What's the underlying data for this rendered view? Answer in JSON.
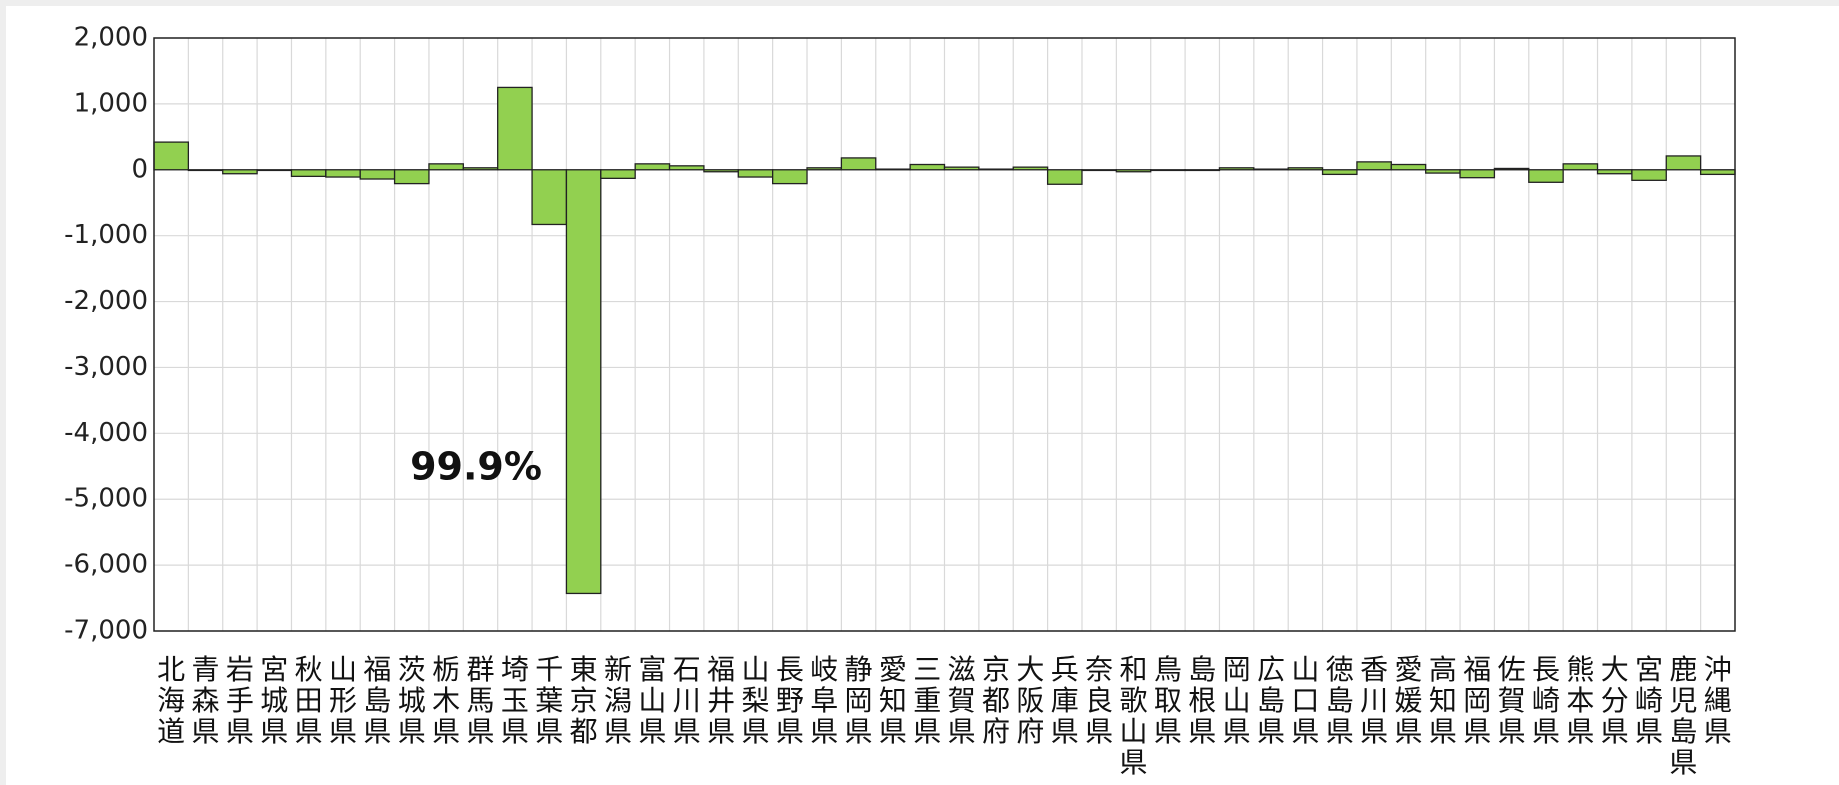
{
  "chart_data": {
    "type": "bar",
    "categories": [
      "北海道",
      "青森県",
      "岩手県",
      "宮城県",
      "秋田県",
      "山形県",
      "福島県",
      "茨城県",
      "栃木県",
      "群馬県",
      "埼玉県",
      "千葉県",
      "東京都",
      "新潟県",
      "富山県",
      "石川県",
      "福井県",
      "山梨県",
      "長野県",
      "岐阜県",
      "静岡県",
      "愛知県",
      "三重県",
      "滋賀県",
      "京都府",
      "大阪府",
      "兵庫県",
      "奈良県",
      "和歌山県",
      "鳥取県",
      "島根県",
      "岡山県",
      "広島県",
      "山口県",
      "徳島県",
      "香川県",
      "愛媛県",
      "高知県",
      "福岡県",
      "佐賀県",
      "長崎県",
      "熊本県",
      "大分県",
      "宮崎県",
      "鹿児島県",
      "沖縄県"
    ],
    "values": [
      420,
      -10,
      -60,
      -10,
      -100,
      -110,
      -140,
      -210,
      90,
      30,
      1250,
      -830,
      -6430,
      -130,
      90,
      60,
      -30,
      -110,
      -210,
      30,
      180,
      10,
      80,
      40,
      10,
      40,
      -220,
      -10,
      -30,
      -10,
      -10,
      30,
      10,
      30,
      -70,
      120,
      80,
      -50,
      -120,
      20,
      -190,
      90,
      -60,
      -160,
      210,
      -70
    ],
    "color": "#92d050",
    "ylim": [
      -7000,
      2000
    ],
    "yticks": [
      {
        "value": -7000,
        "label": "-7,000"
      },
      {
        "value": -6000,
        "label": "-6,000"
      },
      {
        "value": -5000,
        "label": "-5,000"
      },
      {
        "value": -4000,
        "label": "-4,000"
      },
      {
        "value": -3000,
        "label": "-3,000"
      },
      {
        "value": -2000,
        "label": "-2,000"
      },
      {
        "value": -1000,
        "label": "-1,000"
      },
      0,
      {
        "value": 1000,
        "label": "1,000"
      },
      {
        "value": 2000,
        "label": "2,000"
      }
    ],
    "grid": true,
    "annotation": "99.9%"
  }
}
